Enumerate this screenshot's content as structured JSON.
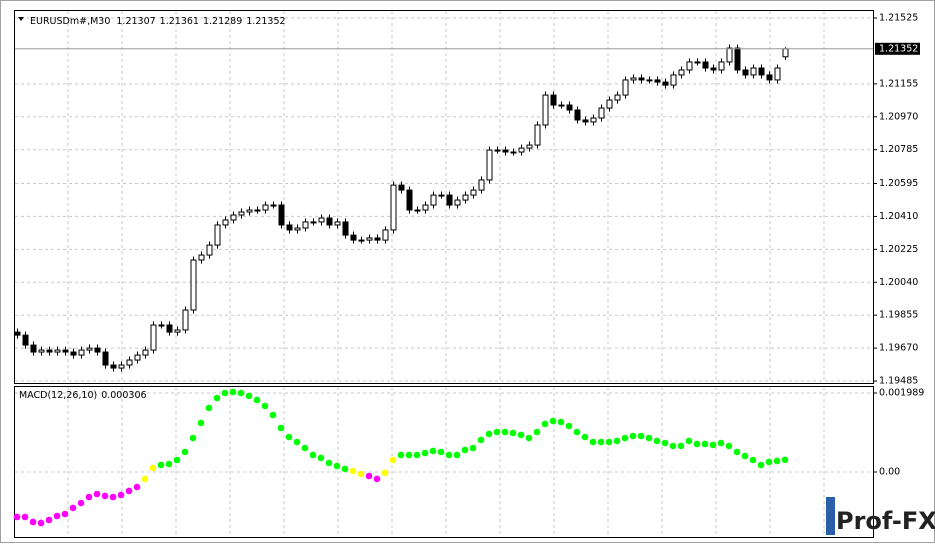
{
  "chart_data": [
    {
      "type": "candlestick",
      "title": "EURUSDm#,M30",
      "open": [
        1.1976,
        1.19743,
        1.19687,
        1.19648,
        1.19659,
        1.19648,
        1.19659,
        1.19648,
        1.19631,
        1.19659,
        1.1967,
        1.19648,
        1.19575,
        1.19558,
        1.19575,
        1.19603,
        1.19631,
        1.19659,
        1.198,
        1.198,
        1.1976,
        1.19772,
        1.19884,
        1.20165,
        1.20193,
        1.20249,
        1.20362,
        1.2039,
        1.20418,
        1.20435,
        1.20446,
        1.20446,
        1.20474,
        1.20474,
        1.20362,
        1.20334,
        1.20345,
        1.20379,
        1.20379,
        1.20401,
        1.20362,
        1.20379,
        1.20305,
        1.20277,
        1.20277,
        1.20289,
        1.20277,
        1.20334,
        1.20586,
        1.20558,
        1.20446,
        1.20446,
        1.20474,
        1.2053,
        1.2053,
        1.20474,
        1.20502,
        1.2053,
        1.20558,
        1.20615,
        1.20783,
        1.20783,
        1.20772,
        1.20772,
        1.20794,
        1.20811,
        1.20924,
        1.21092,
        1.21036,
        1.21036,
        1.21008,
        1.20952,
        1.20941,
        1.20963,
        1.21019,
        1.21064,
        1.21092,
        1.21177,
        1.21188,
        1.21177,
        1.21177,
        1.21165,
        1.21148,
        1.21205,
        1.21233,
        1.21278,
        1.21278,
        1.21244,
        1.21233,
        1.21278,
        1.21356,
        1.21233,
        1.21205,
        1.21244,
        1.21205,
        1.21177,
        1.21307
      ],
      "high": [
        1.1978,
        1.19763,
        1.19707,
        1.19679,
        1.19679,
        1.19679,
        1.19679,
        1.19668,
        1.19679,
        1.1969,
        1.1969,
        1.19668,
        1.19595,
        1.19595,
        1.19623,
        1.19651,
        1.19679,
        1.1982,
        1.1982,
        1.1982,
        1.19792,
        1.19904,
        1.20185,
        1.20213,
        1.20269,
        1.20382,
        1.2041,
        1.20438,
        1.20455,
        1.20466,
        1.20466,
        1.20494,
        1.20494,
        1.20494,
        1.20382,
        1.20365,
        1.20399,
        1.20399,
        1.20421,
        1.20421,
        1.20399,
        1.20399,
        1.20325,
        1.20297,
        1.20309,
        1.20309,
        1.20354,
        1.20606,
        1.20606,
        1.20578,
        1.20466,
        1.20494,
        1.2055,
        1.2055,
        1.2055,
        1.20522,
        1.2055,
        1.20578,
        1.20635,
        1.20803,
        1.20803,
        1.20803,
        1.20792,
        1.20814,
        1.20831,
        1.20944,
        1.21112,
        1.21112,
        1.21056,
        1.21056,
        1.21028,
        1.20972,
        1.20983,
        1.21039,
        1.21084,
        1.21112,
        1.21197,
        1.21208,
        1.21208,
        1.21197,
        1.21197,
        1.21185,
        1.21225,
        1.21253,
        1.21298,
        1.21298,
        1.21298,
        1.21264,
        1.21298,
        1.21376,
        1.21376,
        1.21253,
        1.21264,
        1.21264,
        1.21225,
        1.21264,
        1.21361
      ],
      "low": [
        1.19723,
        1.19667,
        1.19628,
        1.19628,
        1.19628,
        1.19628,
        1.19628,
        1.19611,
        1.19611,
        1.19639,
        1.19628,
        1.19555,
        1.19538,
        1.19538,
        1.19555,
        1.19583,
        1.19611,
        1.19639,
        1.1978,
        1.1974,
        1.1974,
        1.19752,
        1.19864,
        1.20145,
        1.20173,
        1.20229,
        1.20342,
        1.2037,
        1.20398,
        1.20415,
        1.20426,
        1.20426,
        1.20454,
        1.20342,
        1.20314,
        1.20314,
        1.20325,
        1.20359,
        1.20359,
        1.20342,
        1.20342,
        1.20285,
        1.20257,
        1.20257,
        1.20257,
        1.20257,
        1.20257,
        1.20314,
        1.20538,
        1.20426,
        1.20426,
        1.20426,
        1.20454,
        1.2051,
        1.20454,
        1.20454,
        1.20482,
        1.2051,
        1.20538,
        1.20595,
        1.20763,
        1.20752,
        1.20752,
        1.20752,
        1.20774,
        1.20791,
        1.20904,
        1.21016,
        1.21016,
        1.20988,
        1.20932,
        1.20921,
        1.20921,
        1.20943,
        1.20999,
        1.21044,
        1.21072,
        1.21157,
        1.21157,
        1.21157,
        1.21145,
        1.21128,
        1.21128,
        1.21185,
        1.21213,
        1.21258,
        1.21224,
        1.21213,
        1.21213,
        1.21258,
        1.21213,
        1.21185,
        1.21185,
        1.21185,
        1.21157,
        1.21157,
        1.21289
      ],
      "close": [
        1.19743,
        1.19687,
        1.19648,
        1.19659,
        1.19648,
        1.19659,
        1.19648,
        1.19631,
        1.19659,
        1.1967,
        1.19648,
        1.19575,
        1.19558,
        1.19575,
        1.19603,
        1.19631,
        1.19659,
        1.198,
        1.198,
        1.1976,
        1.19772,
        1.19884,
        1.20165,
        1.20193,
        1.20249,
        1.20362,
        1.2039,
        1.20418,
        1.20435,
        1.20446,
        1.20446,
        1.20474,
        1.20474,
        1.20362,
        1.20334,
        1.20345,
        1.20379,
        1.20379,
        1.20401,
        1.20362,
        1.20379,
        1.20305,
        1.20277,
        1.20277,
        1.20289,
        1.20277,
        1.20334,
        1.20586,
        1.20558,
        1.20446,
        1.20446,
        1.20474,
        1.2053,
        1.2053,
        1.20474,
        1.20502,
        1.2053,
        1.20558,
        1.20615,
        1.20783,
        1.20783,
        1.20772,
        1.20772,
        1.20794,
        1.20811,
        1.20924,
        1.21092,
        1.21036,
        1.21036,
        1.21008,
        1.20952,
        1.20941,
        1.20963,
        1.21019,
        1.21064,
        1.21092,
        1.21177,
        1.21188,
        1.21177,
        1.21177,
        1.21165,
        1.21148,
        1.21205,
        1.21233,
        1.21278,
        1.21278,
        1.21244,
        1.21233,
        1.21278,
        1.21356,
        1.21233,
        1.21205,
        1.21244,
        1.21205,
        1.21177,
        1.21244,
        1.21352
      ],
      "up_color": "#ffffff",
      "down_color": "#000000",
      "line_color": "#000000",
      "ylim": [
        1.19474,
        1.2157
      ],
      "yticks": [
        1.21525,
        1.21155,
        {
          "value": 1.2097,
          "label": "1.20970"
        },
        1.20785,
        1.20595,
        {
          "value": 1.2041,
          "label": "1.20410"
        },
        1.20225,
        {
          "value": 1.2004,
          "label": "1.20040"
        },
        1.19855,
        {
          "value": 1.1967,
          "label": "1.19670"
        },
        1.19485
      ],
      "grid": true
    },
    {
      "type": "dots",
      "title": "MACD(12,26,10)",
      "values": [
        -0.001133,
        -0.001133,
        -0.001259,
        -0.001284,
        -0.001209,
        -0.001108,
        -0.001058,
        -0.000906,
        -0.000781,
        -0.00063,
        -0.000554,
        -0.000604,
        -0.00063,
        -0.000579,
        -0.000478,
        -0.000378,
        -0.000176,
        0.000101,
        0.000176,
        0.000201,
        0.000302,
        0.000504,
        0.000856,
        0.001234,
        0.001612,
        0.001863,
        0.001989,
        0.002014,
        0.001989,
        0.001914,
        0.001813,
        0.001662,
        0.001435,
        0.001108,
        0.000881,
        0.000755,
        0.000604,
        0.000428,
        0.000353,
        0.000227,
        0.000151,
        7.6e-05,
        2.5e-05,
        -5e-05,
        -0.000101,
        -0.000176,
        -2e-05,
        0.000302,
        0.000428,
        0.000428,
        0.000428,
        0.000478,
        0.000529,
        0.000504,
        0.000428,
        0.000428,
        0.000554,
        0.000604,
        0.000806,
        0.000957,
        0.001007,
        0.001007,
        0.000982,
        0.000932,
        0.000856,
        0.001007,
        0.001209,
        0.001284,
        0.001259,
        0.001158,
        0.001007,
        0.000881,
        0.000755,
        0.000755,
        0.000755,
        0.000781,
        0.000856,
        0.000906,
        0.000906,
        0.000856,
        0.000781,
        0.00073,
        0.000655,
        0.000655,
        0.000781,
        0.000705,
        0.000705,
        0.00068,
        0.00073,
        0.000655,
        0.000504,
        0.000403,
        0.000302,
        0.000176,
        0.000252,
        0.000277,
        0.000306
      ],
      "colors": {
        "positive": "#00ff00",
        "negative": "#ff00ff",
        "cross": "#ffff00"
      },
      "ylim": [
        -0.001637,
        0.002165
      ],
      "yticks": [
        0.001989,
        {
          "value": 0,
          "label": "0.00"
        }
      ],
      "grid": true
    }
  ],
  "watermark": "Prof-FX"
}
